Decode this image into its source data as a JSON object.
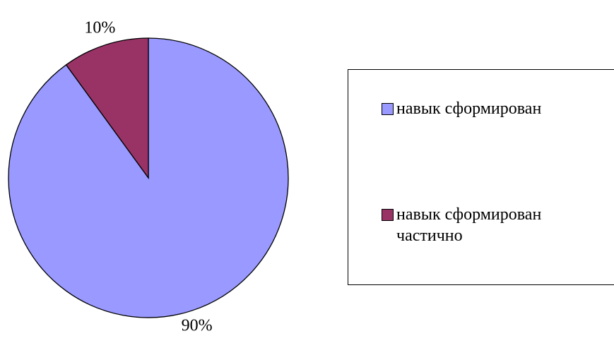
{
  "chart_data": {
    "type": "pie",
    "categories": [
      "навык сформирован",
      "навык сформирован частично"
    ],
    "values": [
      90,
      10
    ],
    "value_labels": [
      "90%",
      "10%"
    ],
    "colors": [
      "#9999ff",
      "#993366"
    ],
    "legend": "right"
  }
}
